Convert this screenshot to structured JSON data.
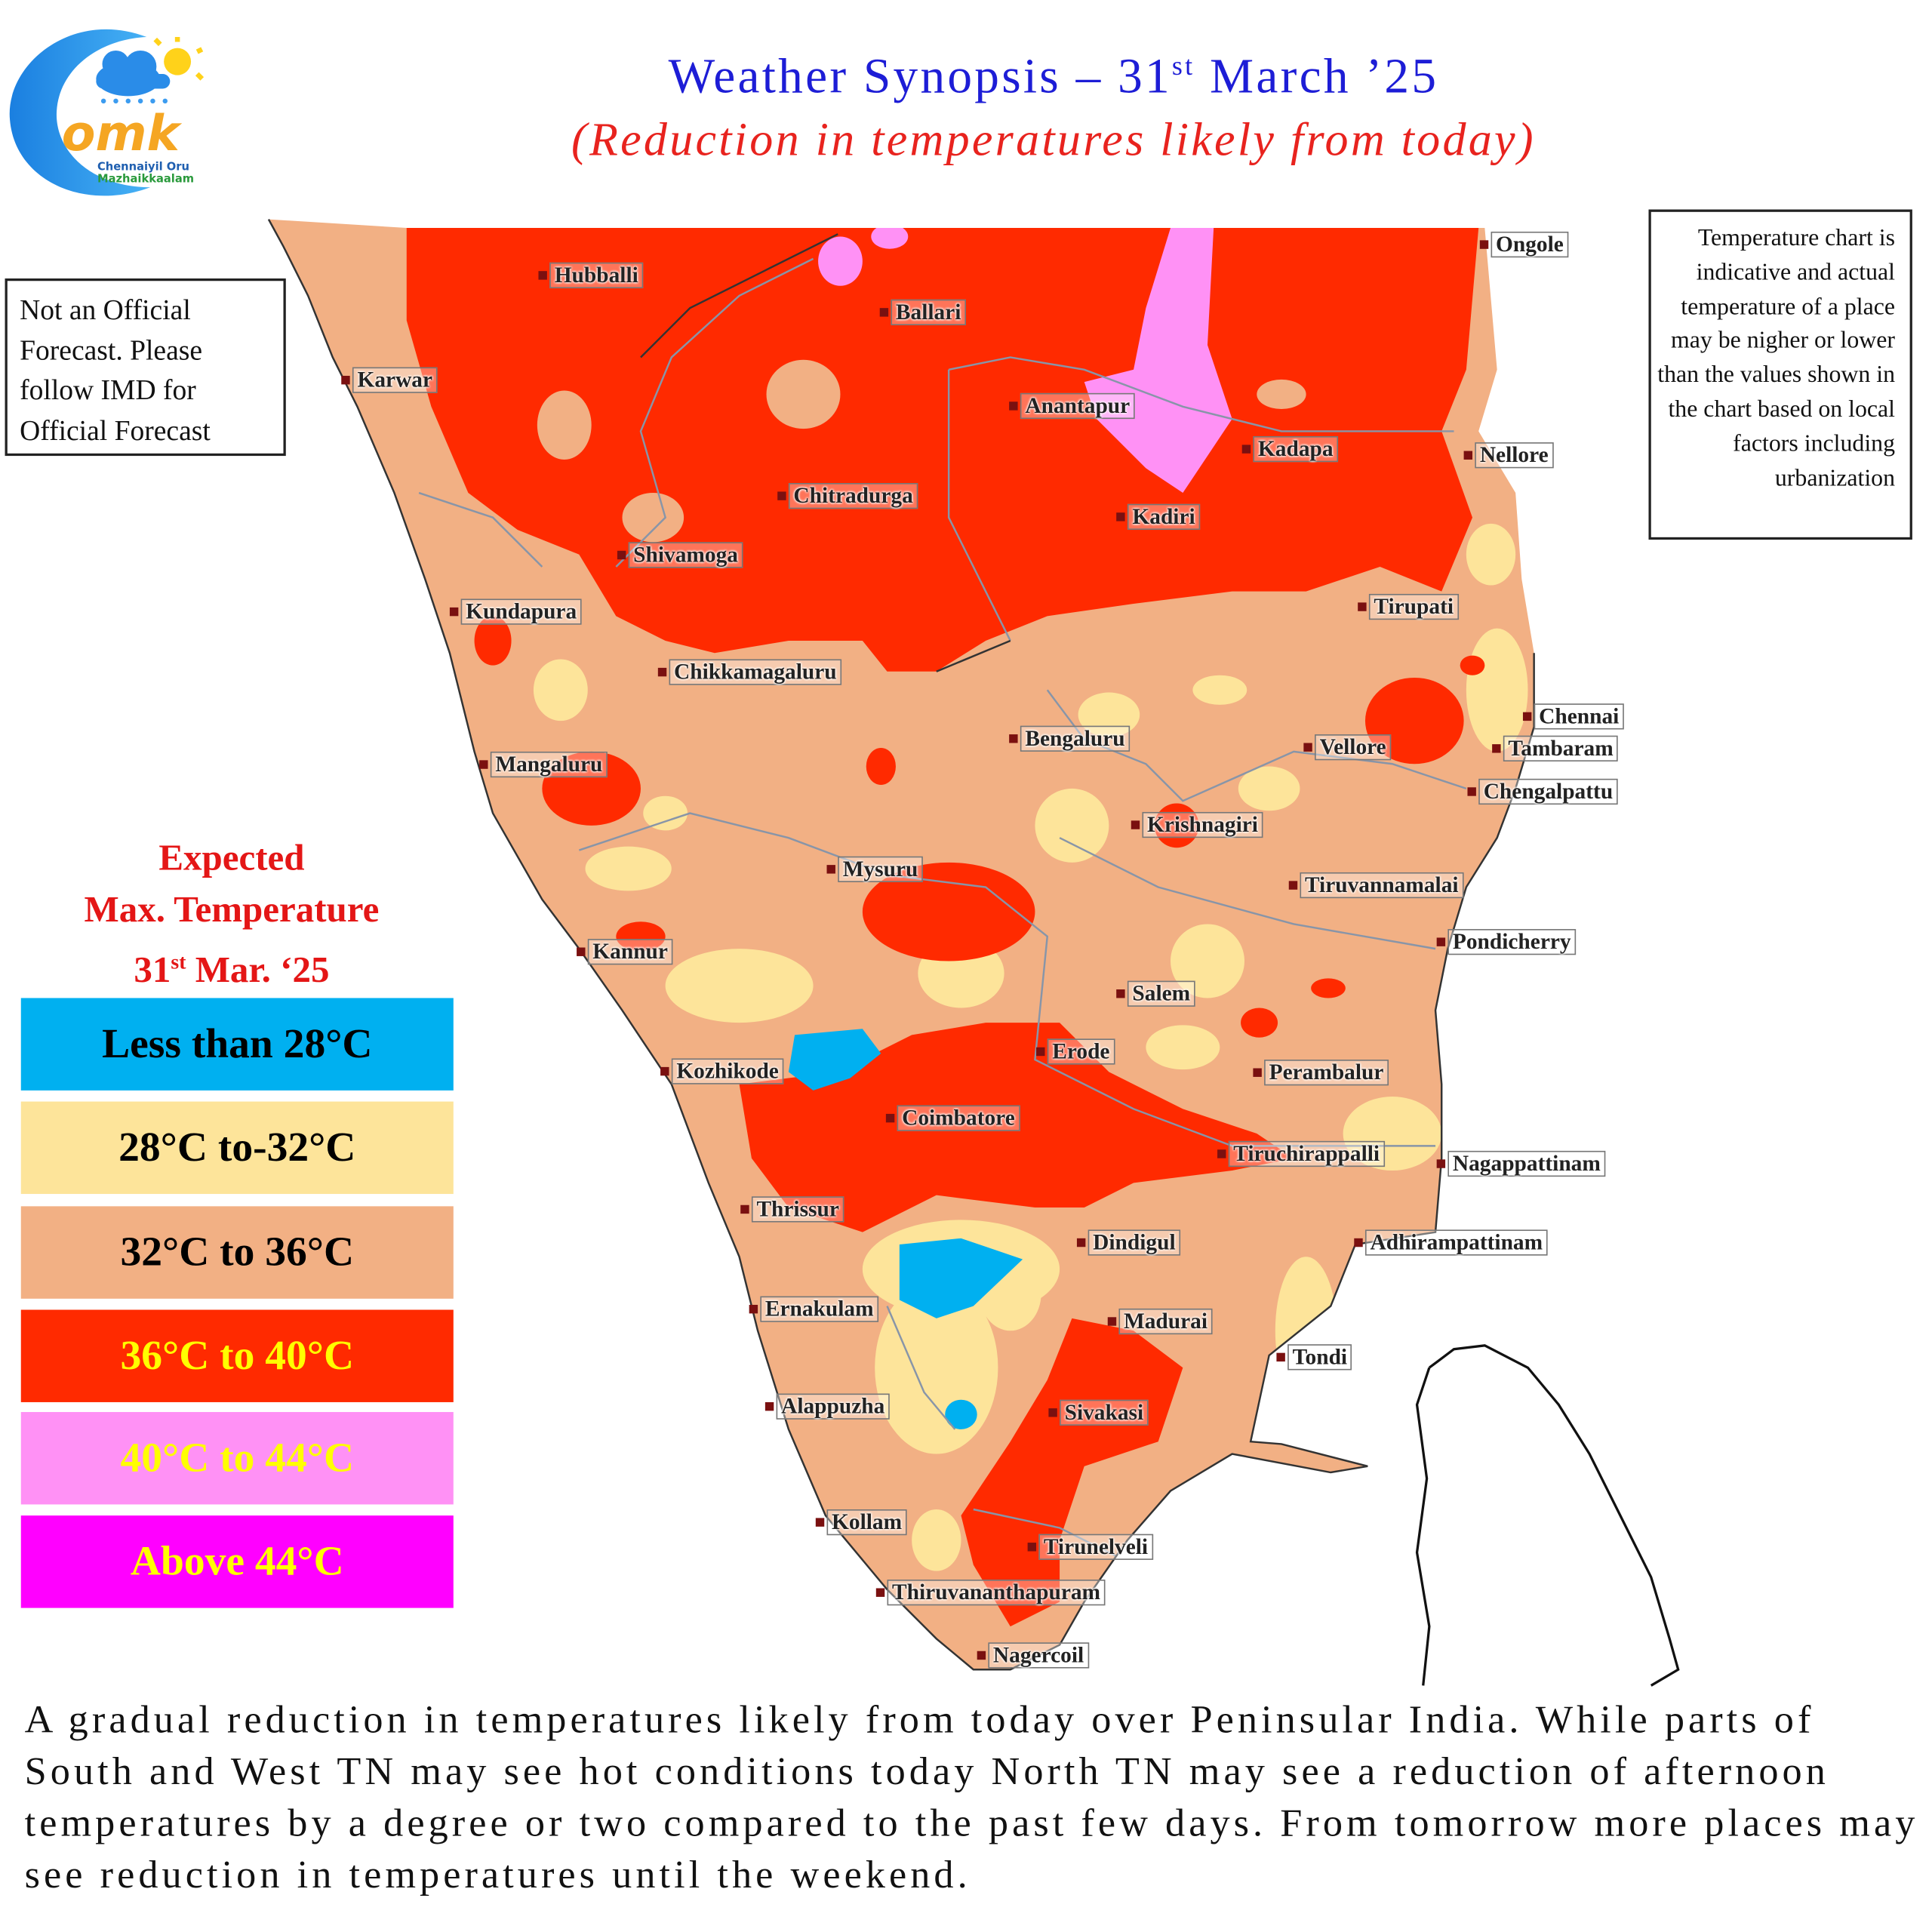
{
  "logo": {
    "mark": "omk",
    "line1": "Chennaiyil Oru",
    "line2": "Mazhaikkaalam"
  },
  "header": {
    "title_pre": "Weather Synopsis – 31",
    "title_sup": "st",
    "title_post": " March ’25",
    "subtitle": "(Reduction in temperatures likely from today)"
  },
  "disclaimer": "Not an Official Forecast. Please follow IMD for Official Forecast",
  "note": "Temperature chart is indicative and actual temperature of a place may be nigher or lower than the values shown in the chart based on local factors including urbanization",
  "legend": {
    "title_line1": "Expected",
    "title_line2": "Max. Temperature",
    "title_line3_pre": "31",
    "title_line3_sup": "st",
    "title_line3_post": " Mar. ‘25",
    "items": [
      {
        "label": "Less than 28°C",
        "color": "#00b0f0",
        "text_color": "#000000"
      },
      {
        "label": "28°C to-32°C",
        "color": "#fde49a",
        "text_color": "#000000"
      },
      {
        "label": "32°C to 36°C",
        "color": "#f2b084",
        "text_color": "#000000"
      },
      {
        "label": "36°C to 40°C",
        "color": "#ff2a00",
        "text_color": "#ffff00"
      },
      {
        "label": "40°C to 44°C",
        "color": "#ff91f5",
        "text_color": "#ffff00"
      },
      {
        "label": "Above 44°C",
        "color": "#ff00ff",
        "text_color": "#ffff00"
      }
    ]
  },
  "map": {
    "cities": [
      "Hubballi",
      "Ballari",
      "Ongole",
      "Karwar",
      "Anantapur",
      "Kadapa",
      "Nellore",
      "Chitradurga",
      "Kadiri",
      "Shivamoga",
      "Kundapura",
      "Tirupati",
      "Chikkamagaluru",
      "Chennai",
      "Tambaram",
      "Bengaluru",
      "Vellore",
      "Chengalpattu",
      "Mangaluru",
      "Krishnagiri",
      "Mysuru",
      "Tiruvannamalai",
      "Pondicherry",
      "Kannur",
      "Salem",
      "Erode",
      "Perambalur",
      "Kozhikode",
      "Coimbatore",
      "Tiruchirappalli",
      "Nagappattinam",
      "Thrissur",
      "Dindigul",
      "Adhirampattinam",
      "Ernakulam",
      "Madurai",
      "Tondi",
      "Alappuzha",
      "Sivakasi",
      "Kollam",
      "Tirunelveli",
      "Thiruvananthapuram",
      "Nagercoil"
    ]
  },
  "footer": "A gradual reduction in temperatures likely from today over Peninsular India. While parts of South and West TN may see hot conditions today North TN may see a reduction of afternoon temperatures by a degree or two compared to the past few days. From tomorrow more places may see reduction in temperatures until the weekend."
}
